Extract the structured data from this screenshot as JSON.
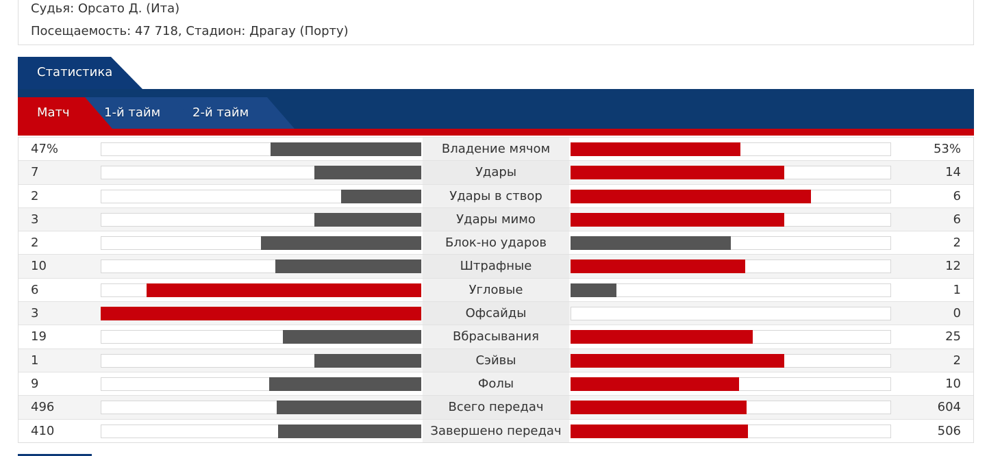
{
  "info": {
    "referee": "Судья: Орсато Д. (Ита)",
    "attendance": "Посещаемость: 47 718,  Стадион: Драгау (Порту)"
  },
  "section_tab": "Статистика",
  "tabs": [
    {
      "label": "Матч",
      "active": true
    },
    {
      "label": "1-й тайм",
      "active": false
    },
    {
      "label": "2-й тайм",
      "active": false
    }
  ],
  "colors": {
    "accent_red": "#c8000a",
    "navy": "#0d3a70",
    "gray_bar": "#555555"
  },
  "stats": [
    {
      "label": "Владение мячом",
      "left": "47%",
      "right": "53%",
      "lv": 47,
      "rv": 53
    },
    {
      "label": "Удары",
      "left": "7",
      "right": "14",
      "lv": 7,
      "rv": 14
    },
    {
      "label": "Удары в створ",
      "left": "2",
      "right": "6",
      "lv": 2,
      "rv": 6
    },
    {
      "label": "Удары мимо",
      "left": "3",
      "right": "6",
      "lv": 3,
      "rv": 6
    },
    {
      "label": "Блок-но ударов",
      "left": "2",
      "right": "2",
      "lv": 2,
      "rv": 2
    },
    {
      "label": "Штрафные",
      "left": "10",
      "right": "12",
      "lv": 10,
      "rv": 12
    },
    {
      "label": "Угловые",
      "left": "6",
      "right": "1",
      "lv": 6,
      "rv": 1
    },
    {
      "label": "Офсайды",
      "left": "3",
      "right": "0",
      "lv": 3,
      "rv": 0
    },
    {
      "label": "Вбрасывания",
      "left": "19",
      "right": "25",
      "lv": 19,
      "rv": 25
    },
    {
      "label": "Сэйвы",
      "left": "1",
      "right": "2",
      "lv": 1,
      "rv": 2
    },
    {
      "label": "Фолы",
      "left": "9",
      "right": "10",
      "lv": 9,
      "rv": 10
    },
    {
      "label": "Всего передач",
      "left": "496",
      "right": "604",
      "lv": 496,
      "rv": 604
    },
    {
      "label": "Завершено передач",
      "left": "410",
      "right": "506",
      "lv": 410,
      "rv": 506
    }
  ]
}
